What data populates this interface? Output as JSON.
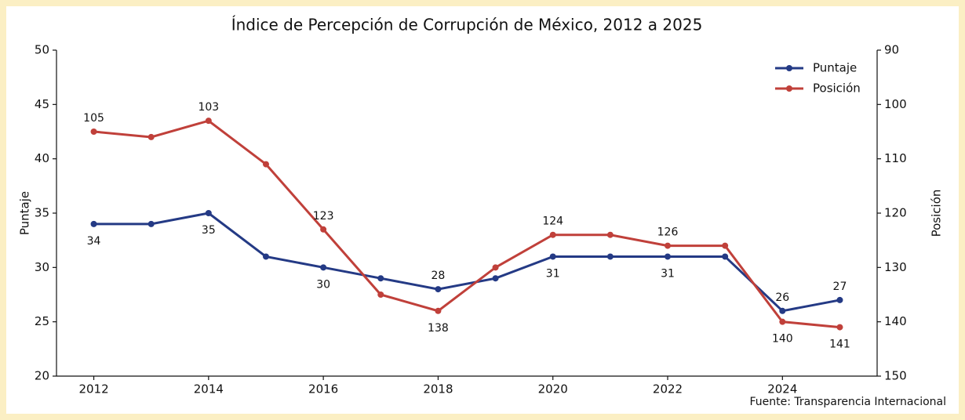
{
  "chart_data": {
    "type": "line",
    "title": "Índice de Percepción de Corrupción de México, 2012 a 2025",
    "ylabel": "Puntaje",
    "y2label": "Posición",
    "source": "Fuente: Transparencia Internacional",
    "x": [
      2012,
      2013,
      2014,
      2015,
      2016,
      2017,
      2018,
      2019,
      2020,
      2021,
      2022,
      2023,
      2024,
      2025
    ],
    "xlim": [
      2011.35,
      2025.65
    ],
    "xticks": [
      2012,
      2014,
      2016,
      2018,
      2020,
      2022,
      2024
    ],
    "ylim": [
      20,
      50
    ],
    "yticks": [
      20,
      25,
      30,
      35,
      40,
      45,
      50
    ],
    "y2lim": [
      150,
      90
    ],
    "y2ticks": [
      90,
      100,
      110,
      120,
      130,
      140,
      150
    ],
    "legend": "upper right",
    "series": [
      {
        "name": "Puntaje",
        "color": "#243a85",
        "values": [
          34,
          34,
          35,
          31,
          30,
          29,
          28,
          29,
          31,
          31,
          31,
          31,
          26,
          27
        ],
        "value_labels": [
          "34",
          null,
          "35",
          null,
          "30",
          null,
          "28",
          null,
          "31",
          null,
          "31",
          null,
          "26",
          "27"
        ]
      },
      {
        "name": "Posición",
        "color": "#c0403a",
        "axis": "y2",
        "values": [
          105,
          106,
          103,
          111,
          123,
          135,
          138,
          130,
          124,
          124,
          126,
          126,
          140,
          141
        ],
        "value_labels": [
          "105",
          null,
          "103",
          null,
          "123",
          null,
          "138",
          null,
          "124",
          null,
          "126",
          null,
          "140",
          "141"
        ]
      }
    ]
  }
}
